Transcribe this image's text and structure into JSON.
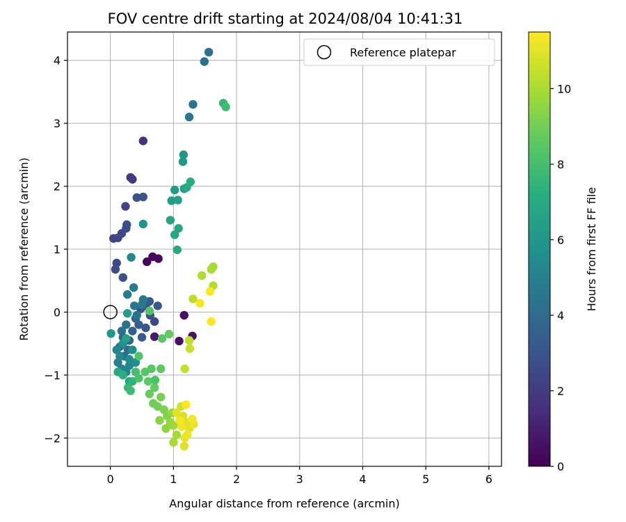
{
  "chart_data": {
    "type": "scatter",
    "title": "FOV centre drift starting at 2024/08/04 10:41:31",
    "xlabel": "Angular distance from reference (arcmin)",
    "ylabel": "Rotation from reference (arcmin)",
    "colorbar_label": "Hours from first FF file",
    "xlim": [
      -0.68,
      6.2
    ],
    "ylim": [
      -2.45,
      4.45
    ],
    "xticks": [
      "0",
      "1",
      "2",
      "3",
      "4",
      "5",
      "6"
    ],
    "yticks": [
      "−2",
      "−1",
      "0",
      "1",
      "2",
      "3",
      "4"
    ],
    "colorbar_ticks": [
      "0",
      "2",
      "4",
      "6",
      "8",
      "10"
    ],
    "color_range": [
      0,
      11.5
    ],
    "colormap": "viridis",
    "grid": true,
    "legend": {
      "position": "top-right",
      "entries": [
        "Reference platepar"
      ]
    },
    "reference_point": {
      "x": 0,
      "y": 0
    },
    "points": [
      [
        0.58,
        0.8,
        0.1
      ],
      [
        0.67,
        0.88,
        0.2
      ],
      [
        0.76,
        0.85,
        0.3
      ],
      [
        1.17,
        -0.05,
        0.4
      ],
      [
        1.09,
        -0.46,
        0.5
      ],
      [
        1.3,
        -0.38,
        0.6
      ],
      [
        0.7,
        -0.39,
        0.8
      ],
      [
        0.52,
        2.72,
        1.6
      ],
      [
        0.32,
        2.14,
        1.8
      ],
      [
        0.35,
        2.11,
        2.0
      ],
      [
        0.24,
        1.68,
        2.2
      ],
      [
        0.05,
        1.17,
        2.3
      ],
      [
        0.12,
        1.18,
        2.4
      ],
      [
        0.18,
        1.25,
        2.5
      ],
      [
        0.25,
        1.33,
        2.6
      ],
      [
        0.26,
        1.39,
        2.7
      ],
      [
        0.42,
        1.82,
        2.8
      ],
      [
        0.52,
        1.83,
        2.9
      ],
      [
        0.1,
        0.78,
        2.5
      ],
      [
        0.08,
        0.68,
        2.6
      ],
      [
        0.2,
        0.55,
        2.8
      ],
      [
        0.56,
        0.1,
        2.6
      ],
      [
        0.48,
        0.05,
        2.8
      ],
      [
        0.7,
        -0.15,
        2.5
      ],
      [
        0.63,
        -0.05,
        2.9
      ],
      [
        0.56,
        -0.25,
        3.0
      ],
      [
        0.75,
        0.1,
        3.1
      ],
      [
        0.62,
        0.17,
        3.2
      ],
      [
        0.5,
        -0.4,
        3.3
      ],
      [
        0.45,
        -0.2,
        3.4
      ],
      [
        0.35,
        -0.3,
        3.5
      ],
      [
        0.4,
        -0.1,
        3.6
      ],
      [
        0.3,
        -0.45,
        3.7
      ],
      [
        0.2,
        -0.4,
        3.8
      ],
      [
        0.28,
        -0.6,
        3.9
      ],
      [
        0.15,
        -0.55,
        4.0
      ],
      [
        0.22,
        -0.7,
        4.1
      ],
      [
        0.18,
        -0.3,
        4.2
      ],
      [
        0.25,
        -0.2,
        4.3
      ],
      [
        0.42,
        -0.05,
        4.4
      ],
      [
        0.38,
        0.1,
        4.5
      ],
      [
        0.5,
        0.12,
        4.6
      ],
      [
        1.49,
        3.98,
        4.2
      ],
      [
        1.56,
        4.13,
        4.3
      ],
      [
        1.31,
        3.3,
        4.4
      ],
      [
        1.25,
        3.1,
        4.6
      ],
      [
        0.37,
        0.39,
        4.7
      ],
      [
        0.27,
        0.28,
        4.8
      ],
      [
        0.52,
        0.2,
        4.6
      ],
      [
        0.12,
        -0.8,
        4.9
      ],
      [
        0.18,
        -0.9,
        5.0
      ],
      [
        0.25,
        -0.95,
        5.1
      ],
      [
        0.3,
        -0.85,
        5.2
      ],
      [
        0.1,
        -0.6,
        5.3
      ],
      [
        0.15,
        -0.7,
        5.4
      ],
      [
        0.3,
        -0.75,
        5.5
      ],
      [
        0.35,
        -0.6,
        5.6
      ],
      [
        0.4,
        -0.8,
        5.7
      ],
      [
        0.2,
        -0.5,
        5.8
      ],
      [
        0.33,
        0.87,
        5.3
      ],
      [
        0.52,
        1.4,
        5.9
      ],
      [
        1.16,
        2.5,
        6.0
      ],
      [
        1.15,
        2.39,
        6.1
      ],
      [
        1.02,
        1.94,
        6.2
      ],
      [
        1.17,
        1.96,
        6.3
      ],
      [
        0.97,
        1.77,
        6.4
      ],
      [
        1.07,
        1.78,
        6.5
      ],
      [
        0.95,
        1.46,
        6.6
      ],
      [
        1.08,
        1.33,
        6.7
      ],
      [
        1.02,
        1.23,
        6.8
      ],
      [
        1.06,
        0.99,
        6.9
      ],
      [
        1.21,
        1.98,
        7.0
      ],
      [
        1.27,
        2.07,
        7.1
      ],
      [
        0.01,
        -0.34,
        6.0
      ],
      [
        0.27,
        -0.02,
        6.3
      ],
      [
        0.25,
        -0.42,
        6.6
      ],
      [
        0.3,
        -1.1,
        6.8
      ],
      [
        0.12,
        -0.95,
        7.0
      ],
      [
        0.2,
        -1.0,
        7.2
      ],
      [
        0.35,
        -1.1,
        7.4
      ],
      [
        0.28,
        -1.2,
        7.6
      ],
      [
        0.32,
        -1.25,
        7.8
      ],
      [
        0.4,
        -0.95,
        8.0
      ],
      [
        0.45,
        -1.05,
        8.2
      ],
      [
        1.79,
        3.32,
        7.6
      ],
      [
        1.83,
        3.26,
        7.8
      ],
      [
        0.45,
        -0.7,
        8.3
      ],
      [
        0.55,
        -0.95,
        8.4
      ],
      [
        0.65,
        -0.9,
        8.5
      ],
      [
        0.6,
        -1.1,
        8.6
      ],
      [
        0.7,
        -1.2,
        8.7
      ],
      [
        0.62,
        -1.3,
        8.8
      ],
      [
        0.68,
        -1.45,
        8.9
      ],
      [
        0.75,
        -1.5,
        9.0
      ],
      [
        0.8,
        -1.35,
        9.1
      ],
      [
        0.85,
        -1.55,
        9.2
      ],
      [
        0.9,
        -1.65,
        9.3
      ],
      [
        0.78,
        -1.72,
        9.4
      ],
      [
        0.82,
        -0.42,
        8.5
      ],
      [
        0.93,
        -0.35,
        8.7
      ],
      [
        0.62,
        0.02,
        8.3
      ],
      [
        0.71,
        -1.08,
        8.2
      ],
      [
        0.8,
        -0.9,
        8.6
      ],
      [
        0.88,
        -1.85,
        9.5
      ],
      [
        0.95,
        -1.75,
        9.6
      ],
      [
        0.98,
        -1.6,
        9.7
      ],
      [
        1.0,
        -1.8,
        9.8
      ],
      [
        1.05,
        -1.95,
        9.9
      ],
      [
        1.0,
        -2.07,
        10.0
      ],
      [
        1.63,
        0.72,
        9.9
      ],
      [
        1.6,
        0.68,
        10.0
      ],
      [
        1.45,
        0.58,
        10.1
      ],
      [
        1.63,
        0.42,
        10.2
      ],
      [
        1.31,
        0.21,
        10.3
      ],
      [
        1.25,
        -0.45,
        10.4
      ],
      [
        1.18,
        -0.9,
        10.5
      ],
      [
        1.26,
        -0.58,
        10.6
      ],
      [
        1.12,
        -1.5,
        10.7
      ],
      [
        1.15,
        -1.65,
        10.8
      ],
      [
        1.2,
        -1.75,
        10.9
      ],
      [
        1.25,
        -1.85,
        11.0
      ],
      [
        1.18,
        -2.0,
        11.1
      ],
      [
        1.22,
        -1.95,
        11.2
      ],
      [
        1.3,
        -1.7,
        11.3
      ],
      [
        1.1,
        -1.72,
        11.4
      ],
      [
        1.2,
        -1.47,
        11.5
      ],
      [
        1.42,
        0.14,
        11.4
      ],
      [
        1.58,
        0.33,
        11.5
      ],
      [
        1.6,
        -0.15,
        11.5
      ],
      [
        1.32,
        -1.78,
        11.2
      ],
      [
        1.17,
        -2.13,
        10.9
      ],
      [
        1.05,
        -1.6,
        11.0
      ],
      [
        1.13,
        -1.82,
        11.3
      ]
    ]
  }
}
